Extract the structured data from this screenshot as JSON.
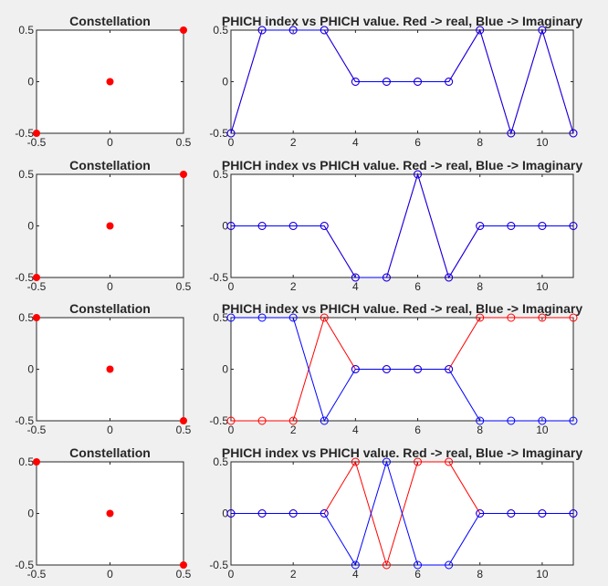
{
  "chart_data": [
    {
      "type": "scatter",
      "title": "Constellation",
      "xlim": [
        -0.5,
        0.5
      ],
      "ylim": [
        -0.5,
        0.5
      ],
      "xticks": [
        -0.5,
        0,
        0.5
      ],
      "yticks": [
        -0.5,
        0,
        0.5
      ],
      "series": [
        {
          "color": "#ff0000",
          "points": [
            [
              -0.5,
              -0.5
            ],
            [
              0,
              0
            ],
            [
              0.5,
              0.5
            ]
          ]
        }
      ]
    },
    {
      "type": "line",
      "title": "PHICH index vs PHICH value. Red -> real, Blue -> Imaginary",
      "xlim": [
        0,
        11
      ],
      "ylim": [
        -0.5,
        0.5
      ],
      "xticks": [
        0,
        2,
        4,
        6,
        8,
        10
      ],
      "yticks": [
        -0.5,
        0,
        0.5
      ],
      "x": [
        0,
        1,
        2,
        3,
        4,
        5,
        6,
        7,
        8,
        9,
        10,
        11
      ],
      "series": [
        {
          "color": "#ff0000",
          "values": [
            -0.5,
            0.5,
            0.5,
            0.5,
            0,
            0,
            0,
            0,
            0.5,
            -0.5,
            0.5,
            -0.5
          ]
        },
        {
          "color": "#0000ff",
          "values": [
            -0.5,
            0.5,
            0.5,
            0.5,
            0,
            0,
            0,
            0,
            0.5,
            -0.5,
            0.5,
            -0.5
          ]
        }
      ]
    },
    {
      "type": "scatter",
      "title": "Constellation",
      "xlim": [
        -0.5,
        0.5
      ],
      "ylim": [
        -0.5,
        0.5
      ],
      "xticks": [
        -0.5,
        0,
        0.5
      ],
      "yticks": [
        -0.5,
        0,
        0.5
      ],
      "series": [
        {
          "color": "#ff0000",
          "points": [
            [
              -0.5,
              -0.5
            ],
            [
              0,
              0
            ],
            [
              0.5,
              0.5
            ]
          ]
        }
      ]
    },
    {
      "type": "line",
      "title": "PHICH index vs PHICH value. Red -> real, Blue -> Imaginary",
      "xlim": [
        0,
        11
      ],
      "ylim": [
        -0.5,
        0.5
      ],
      "xticks": [
        0,
        2,
        4,
        6,
        8,
        10
      ],
      "yticks": [
        -0.5,
        0,
        0.5
      ],
      "x": [
        0,
        1,
        2,
        3,
        4,
        5,
        6,
        7,
        8,
        9,
        10,
        11
      ],
      "series": [
        {
          "color": "#ff0000",
          "values": [
            0,
            0,
            0,
            0,
            -0.5,
            -0.5,
            0.5,
            -0.5,
            0,
            0,
            0,
            0
          ]
        },
        {
          "color": "#0000ff",
          "values": [
            0,
            0,
            0,
            0,
            -0.5,
            -0.5,
            0.5,
            -0.5,
            0,
            0,
            0,
            0
          ]
        }
      ]
    },
    {
      "type": "scatter",
      "title": "Constellation",
      "xlim": [
        -0.5,
        0.5
      ],
      "ylim": [
        -0.5,
        0.5
      ],
      "xticks": [
        -0.5,
        0,
        0.5
      ],
      "yticks": [
        -0.5,
        0,
        0.5
      ],
      "series": [
        {
          "color": "#ff0000",
          "points": [
            [
              -0.5,
              0.5
            ],
            [
              0,
              0
            ],
            [
              0.5,
              -0.5
            ]
          ]
        }
      ]
    },
    {
      "type": "line",
      "title": "PHICH index vs PHICH value. Red -> real, Blue -> Imaginary",
      "xlim": [
        0,
        11
      ],
      "ylim": [
        -0.5,
        0.5
      ],
      "xticks": [
        0,
        2,
        4,
        6,
        8,
        10
      ],
      "yticks": [
        -0.5,
        0,
        0.5
      ],
      "x": [
        0,
        1,
        2,
        3,
        4,
        5,
        6,
        7,
        8,
        9,
        10,
        11
      ],
      "series": [
        {
          "color": "#ff0000",
          "values": [
            -0.5,
            -0.5,
            -0.5,
            0.5,
            0,
            0,
            0,
            0,
            0.5,
            0.5,
            0.5,
            0.5
          ]
        },
        {
          "color": "#0000ff",
          "values": [
            0.5,
            0.5,
            0.5,
            -0.5,
            0,
            0,
            0,
            0,
            -0.5,
            -0.5,
            -0.5,
            -0.5
          ]
        }
      ]
    },
    {
      "type": "scatter",
      "title": "Constellation",
      "xlim": [
        -0.5,
        0.5
      ],
      "ylim": [
        -0.5,
        0.5
      ],
      "xticks": [
        -0.5,
        0,
        0.5
      ],
      "yticks": [
        -0.5,
        0,
        0.5
      ],
      "series": [
        {
          "color": "#ff0000",
          "points": [
            [
              -0.5,
              0.5
            ],
            [
              0,
              0
            ],
            [
              0.5,
              -0.5
            ]
          ]
        }
      ]
    },
    {
      "type": "line",
      "title": "PHICH index vs PHICH value. Red -> real, Blue -> Imaginary",
      "xlim": [
        0,
        11
      ],
      "ylim": [
        -0.5,
        0.5
      ],
      "xticks": [
        0,
        2,
        4,
        6,
        8,
        10
      ],
      "yticks": [
        -0.5,
        0,
        0.5
      ],
      "x": [
        0,
        1,
        2,
        3,
        4,
        5,
        6,
        7,
        8,
        9,
        10,
        11
      ],
      "series": [
        {
          "color": "#ff0000",
          "values": [
            0,
            0,
            0,
            0,
            0.5,
            -0.5,
            0.5,
            0.5,
            0,
            0,
            0,
            0
          ]
        },
        {
          "color": "#0000ff",
          "values": [
            0,
            0,
            0,
            0,
            -0.5,
            0.5,
            -0.5,
            -0.5,
            0,
            0,
            0,
            0
          ]
        }
      ]
    }
  ]
}
